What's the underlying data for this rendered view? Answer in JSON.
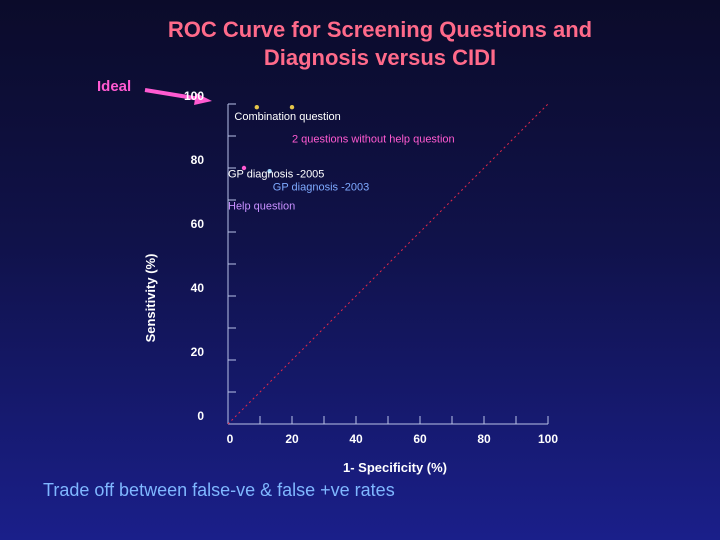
{
  "header": {
    "title_line1": "ROC Curve for Screening Questions and",
    "title_line2": "Diagnosis versus CIDI"
  },
  "ideal": {
    "label": "Ideal",
    "color": "#ff5ad1"
  },
  "caption": "Trade off between false-ve & false +ve rates",
  "chart_data": {
    "type": "scatter",
    "xlabel": "1- Specificity (%)",
    "ylabel": "Sensitivity (%)",
    "xlim": [
      0,
      100
    ],
    "ylim": [
      0,
      100
    ],
    "xticks": [
      "0",
      "20",
      "40",
      "60",
      "80",
      "100"
    ],
    "yticks": [
      "0",
      "20",
      "40",
      "60",
      "80",
      "100"
    ],
    "reference_line": {
      "from": [
        0,
        0
      ],
      "to": [
        100,
        100
      ],
      "style": "dotted",
      "color": "#e0294a"
    },
    "points": [
      {
        "x": 9,
        "y": 99,
        "color": "#e6c64a"
      },
      {
        "x": 20,
        "y": 99,
        "color": "#e6c64a"
      },
      {
        "x": 5,
        "y": 80,
        "color": "#ff5ad1"
      },
      {
        "x": 13,
        "y": 79,
        "color": "#9fd8ff"
      }
    ],
    "annotations": [
      {
        "text": "Combination question",
        "x": 2,
        "y": 95,
        "color": "#ffffff"
      },
      {
        "text": "2 questions without help question",
        "x": 20,
        "y": 88,
        "color": "#ff5ad1"
      },
      {
        "text": "GP diagnosis -2005",
        "x": 0,
        "y": 77,
        "color": "#ffffff"
      },
      {
        "text": "GP diagnosis -2003",
        "x": 14,
        "y": 73,
        "color": "#7faaff"
      },
      {
        "text": "Help question",
        "x": 0,
        "y": 67,
        "color": "#c890ff"
      }
    ]
  }
}
